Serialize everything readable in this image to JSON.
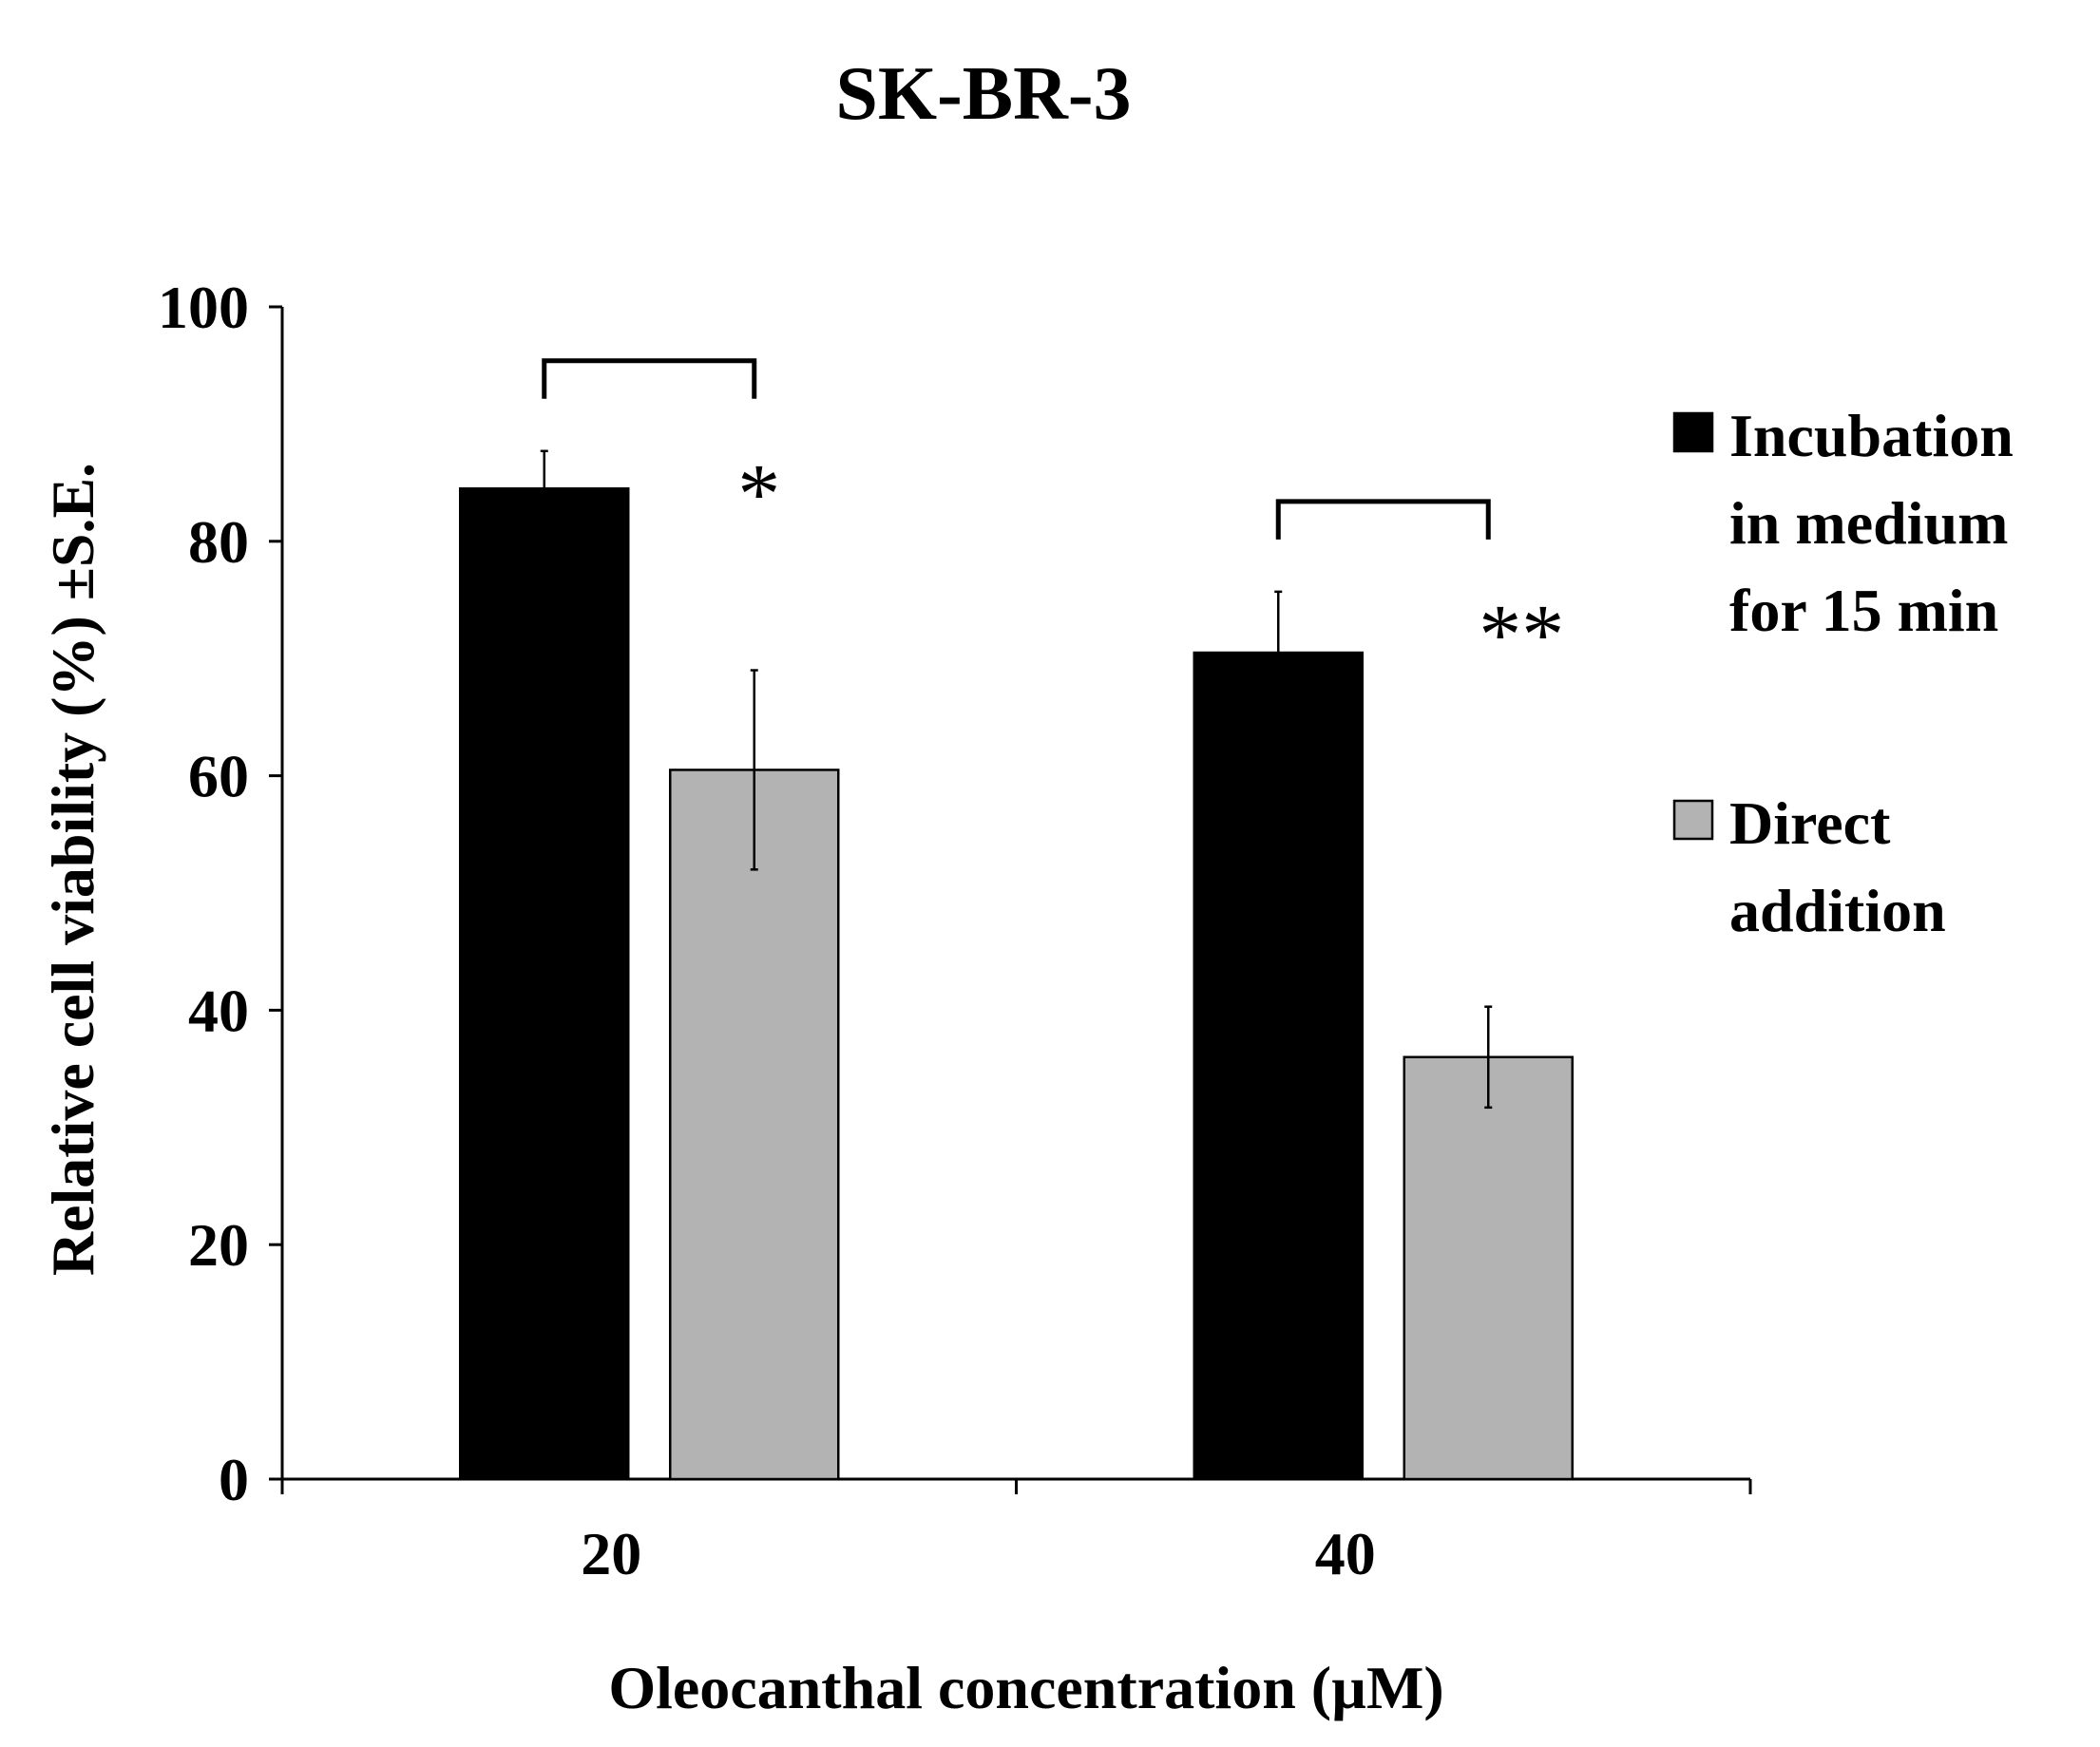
{
  "chart_data": {
    "type": "bar",
    "title": "SK-BR-3",
    "xlabel": "Oleocanthal concentration (µM)",
    "ylabel": "Relative cell viability (%) ±S.E.",
    "categories": [
      "20",
      "40"
    ],
    "ylim": [
      0,
      100
    ],
    "yticks": [
      0,
      20,
      40,
      60,
      80,
      100
    ],
    "series": [
      {
        "name": "Incubation in medium for 15 min",
        "legend_lines": [
          "Incubation",
          "in medium",
          "for 15 min"
        ],
        "color": "#000000",
        "values": [
          84.5,
          70.5
        ],
        "errors": [
          3.2,
          5.2
        ]
      },
      {
        "name": "Direct addition",
        "legend_lines": [
          "Direct",
          "addition"
        ],
        "color": "#b3b3b3",
        "values": [
          60.5,
          36
        ],
        "errors": [
          8.5,
          4.3
        ]
      }
    ],
    "annotations": [
      {
        "category": "20",
        "text": "*"
      },
      {
        "category": "40",
        "text": "**"
      }
    ],
    "legend_position": "right",
    "grid": false
  }
}
